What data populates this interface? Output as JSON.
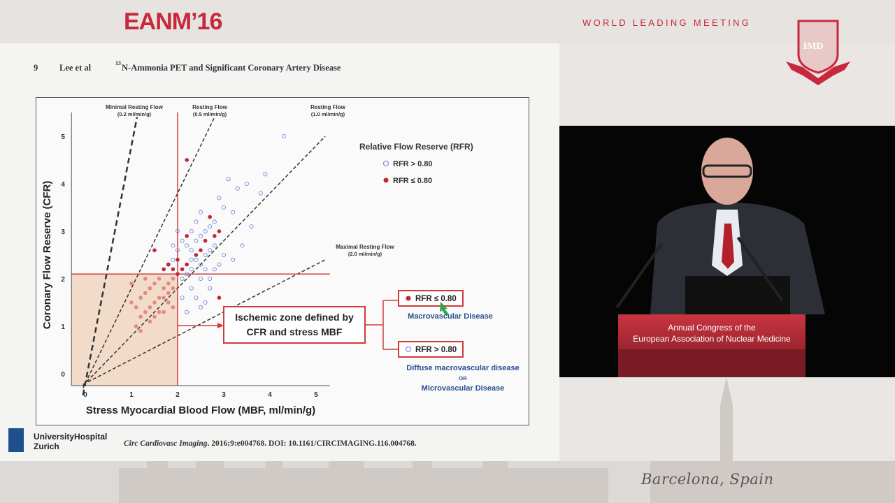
{
  "event": {
    "logo": "EANM’16",
    "tagline": "WORLD LEADING MEETING",
    "badge_text": "IMD",
    "city": "Barcelona, Spain"
  },
  "slide": {
    "page_number": "9",
    "authors": "Lee et al",
    "title_sup": "13",
    "title": "N-Ammonia PET and Significant Coronary Artery Disease",
    "institution_line1": "UniversityHospital",
    "institution_line2": "Zurich",
    "citation_journal": "Circ Cardiovasc Imaging",
    "citation_rest": ". 2016;9:e004768. DOI: 10.1161/CIRCIMAGING.116.004768."
  },
  "chart_data": {
    "type": "scatter",
    "xlabel": "Stress Myocardial Blood Flow (MBF, ml/min/g)",
    "ylabel": "Coronary Flow Reserve (CFR)",
    "xlim": [
      0,
      5.3
    ],
    "ylim": [
      0,
      5.3
    ],
    "x_ticks": [
      "0",
      "1",
      "2",
      "3",
      "4",
      "5"
    ],
    "y_ticks": [
      "0",
      "1",
      "2",
      "3",
      "4",
      "5"
    ],
    "legend_title": "Relative Flow Reserve (RFR)",
    "series": [
      {
        "name": "RFR > 0.80",
        "marker": "open",
        "color": "#6b7fd6"
      },
      {
        "name": "RFR ≤ 0.80",
        "marker": "filled",
        "color": "#c0283a"
      }
    ],
    "reference_lines": [
      {
        "label_line1": "Minimal Resting Flow",
        "label_line2": "(0.2 ml/min/g)",
        "resting_flow": 0.2
      },
      {
        "label_line1": "Resting Flow",
        "label_line2": "(0.5 ml/min/g)",
        "resting_flow": 0.5
      },
      {
        "label_line1": "Resting Flow",
        "label_line2": "(1.0 ml/min/g)",
        "resting_flow": 1.0
      },
      {
        "label_line1": "Maximal Resting Flow",
        "label_line2": "(2.0 ml/min/g)",
        "resting_flow": 2.0
      }
    ],
    "thresholds": {
      "stress_mbf": 2.0,
      "cfr": 2.1
    },
    "ischemic_box_label": "Ischemic zone defined by CFR and stress MBF",
    "branch_filled_label": "RFR ≤ 0.80",
    "branch_filled_desc": "Macrovascular Disease",
    "branch_open_label": "RFR > 0.80",
    "branch_open_desc_1": "Diffuse macrovascular disease",
    "branch_open_or": "OR",
    "branch_open_desc_2": "Microvascular Disease",
    "points_filled": [
      [
        1.0,
        1.5
      ],
      [
        1.1,
        1.4
      ],
      [
        1.2,
        1.6
      ],
      [
        1.3,
        1.7
      ],
      [
        1.4,
        1.8
      ],
      [
        1.5,
        1.9
      ],
      [
        1.6,
        2.0
      ],
      [
        1.7,
        1.8
      ],
      [
        1.8,
        1.9
      ],
      [
        1.9,
        2.0
      ],
      [
        1.2,
        1.2
      ],
      [
        1.3,
        1.3
      ],
      [
        1.5,
        1.5
      ],
      [
        1.6,
        1.6
      ],
      [
        1.7,
        1.6
      ],
      [
        1.8,
        1.7
      ],
      [
        1.1,
        1.0
      ],
      [
        1.4,
        1.1
      ],
      [
        1.6,
        1.3
      ],
      [
        1.8,
        1.5
      ],
      [
        1.9,
        1.8
      ],
      [
        2.0,
        2.1
      ],
      [
        2.1,
        2.2
      ],
      [
        2.2,
        2.3
      ],
      [
        1.7,
        2.2
      ],
      [
        1.8,
        2.3
      ],
      [
        1.9,
        2.2
      ],
      [
        2.0,
        2.4
      ],
      [
        1.5,
        2.6
      ],
      [
        2.4,
        2.5
      ],
      [
        2.5,
        2.6
      ],
      [
        2.6,
        2.8
      ],
      [
        2.2,
        2.9
      ],
      [
        2.8,
        2.9
      ],
      [
        2.9,
        3.0
      ],
      [
        2.7,
        3.3
      ],
      [
        2.2,
        4.5
      ],
      [
        2.9,
        1.6
      ],
      [
        1.3,
        2.0
      ],
      [
        1.0,
        1.9
      ],
      [
        1.5,
        1.2
      ],
      [
        1.2,
        0.9
      ],
      [
        1.4,
        1.4
      ],
      [
        1.7,
        1.3
      ],
      [
        1.9,
        1.4
      ]
    ],
    "points_open": [
      [
        2.1,
        2.0
      ],
      [
        2.2,
        2.1
      ],
      [
        2.3,
        2.2
      ],
      [
        2.4,
        2.4
      ],
      [
        2.5,
        2.3
      ],
      [
        2.6,
        2.5
      ],
      [
        2.7,
        2.6
      ],
      [
        2.8,
        2.7
      ],
      [
        2.3,
        2.6
      ],
      [
        2.4,
        2.8
      ],
      [
        2.5,
        2.9
      ],
      [
        2.6,
        3.0
      ],
      [
        2.7,
        3.1
      ],
      [
        2.8,
        3.2
      ],
      [
        2.2,
        2.7
      ],
      [
        2.3,
        3.0
      ],
      [
        2.4,
        3.2
      ],
      [
        2.5,
        3.4
      ],
      [
        2.9,
        3.7
      ],
      [
        3.0,
        3.5
      ],
      [
        3.2,
        3.4
      ],
      [
        3.3,
        3.9
      ],
      [
        3.5,
        4.0
      ],
      [
        3.8,
        3.8
      ],
      [
        3.6,
        3.1
      ],
      [
        4.3,
        5.0
      ],
      [
        3.9,
        4.2
      ],
      [
        3.1,
        4.1
      ],
      [
        2.3,
        1.8
      ],
      [
        2.4,
        1.6
      ],
      [
        2.5,
        1.4
      ],
      [
        2.6,
        1.5
      ],
      [
        2.7,
        1.8
      ],
      [
        2.2,
        1.3
      ],
      [
        2.1,
        1.6
      ],
      [
        2.8,
        2.2
      ],
      [
        2.9,
        2.3
      ],
      [
        3.0,
        2.5
      ],
      [
        3.2,
        2.4
      ],
      [
        3.4,
        2.7
      ],
      [
        1.8,
        2.3
      ],
      [
        1.9,
        2.4
      ],
      [
        2.0,
        2.6
      ],
      [
        2.1,
        2.8
      ],
      [
        2.0,
        3.0
      ],
      [
        1.9,
        2.7
      ],
      [
        2.3,
        2.4
      ],
      [
        2.6,
        2.2
      ],
      [
        2.7,
        2.0
      ],
      [
        2.5,
        2.0
      ]
    ]
  }
}
